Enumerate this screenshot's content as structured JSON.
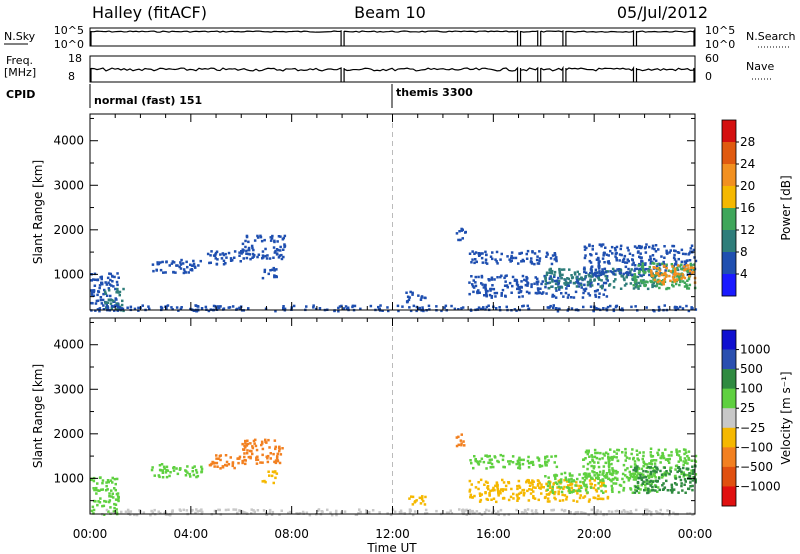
{
  "header": {
    "station": "Halley (fitACF)",
    "beam": "Beam 10",
    "date": "05/Jul/2012"
  },
  "top_strip": {
    "nsky_label": "N.Sky",
    "nsky_ticks": [
      "10^5",
      "10^0"
    ],
    "nsearch_label": "N.Search",
    "nsearch_ticks": [
      "10^5",
      "10^0"
    ],
    "freq_label": "Freq.",
    "freq_unit": "[MHz]",
    "freq_ticks": [
      "18",
      "8"
    ],
    "nave_label": "Nave",
    "nave_ticks": [
      "60",
      "0"
    ],
    "cpid_label": "CPID",
    "cpid_segments": [
      {
        "name": "normal (fast) 151",
        "start_hour": 0,
        "end_hour": 12
      },
      {
        "name": "themis 3300",
        "start_hour": 12,
        "end_hour": 24
      }
    ],
    "data_gaps_hours": [
      10.0,
      17.0,
      17.8,
      18.8,
      21.6
    ]
  },
  "chart_data": [
    {
      "type": "heatmap",
      "name": "power",
      "xlabel": "",
      "ylabel": "Slant Range [km]",
      "xlim": [
        0,
        24
      ],
      "ylim": [
        200,
        4600
      ],
      "yticks": [
        1000,
        2000,
        3000,
        4000
      ],
      "xtick_labels": [
        "00:00",
        "04:00",
        "08:00",
        "12:00",
        "16:00",
        "20:00",
        "00:00"
      ],
      "colorbar": {
        "label": "Power [dB]",
        "ticks": [
          "4",
          "8",
          "12",
          "16",
          "20",
          "24",
          "28"
        ],
        "colors": [
          "#1a1aff",
          "#1f4fb0",
          "#2e7d7a",
          "#3fa65a",
          "#f5b800",
          "#f29020",
          "#e05a10",
          "#d41010"
        ]
      },
      "dashed_line_hour": 12,
      "patches": [
        {
          "t0": 0.0,
          "t1": 1.1,
          "r0": 200,
          "r1": 1050,
          "color": "#1f4fb0"
        },
        {
          "t0": 0.5,
          "t1": 1.3,
          "r0": 200,
          "r1": 700,
          "color": "#2e7d7a"
        },
        {
          "t0": 2.4,
          "t1": 4.4,
          "r0": 1050,
          "r1": 1350,
          "color": "#1f4fb0"
        },
        {
          "t0": 4.6,
          "t1": 6.0,
          "r0": 1250,
          "r1": 1550,
          "color": "#1f4fb0"
        },
        {
          "t0": 6.0,
          "t1": 7.7,
          "r0": 1350,
          "r1": 1900,
          "color": "#1f4fb0"
        },
        {
          "t0": 6.8,
          "t1": 7.4,
          "r0": 900,
          "r1": 1200,
          "color": "#1f4fb0"
        },
        {
          "t0": 14.5,
          "t1": 14.9,
          "r0": 1750,
          "r1": 2050,
          "color": "#1f4fb0"
        },
        {
          "t0": 15.0,
          "t1": 18.5,
          "r0": 1250,
          "r1": 1550,
          "color": "#1f4fb0"
        },
        {
          "t0": 15.0,
          "t1": 20.5,
          "r0": 500,
          "r1": 1000,
          "color": "#1f4fb0"
        },
        {
          "t0": 18.0,
          "t1": 22.5,
          "r0": 700,
          "r1": 1150,
          "color": "#2e7d7a"
        },
        {
          "t0": 19.5,
          "t1": 24.0,
          "r0": 1000,
          "r1": 1700,
          "color": "#1f4fb0"
        },
        {
          "t0": 21.5,
          "t1": 24.0,
          "r0": 700,
          "r1": 1300,
          "color": "#3fa65a"
        },
        {
          "t0": 22.2,
          "t1": 24.0,
          "r0": 800,
          "r1": 1250,
          "color": "#f29020"
        },
        {
          "t0": 12.5,
          "t1": 13.3,
          "r0": 400,
          "r1": 650,
          "color": "#1f4fb0"
        },
        {
          "t0": 0.0,
          "t1": 24.0,
          "r0": 200,
          "r1": 330,
          "color": "#1f4fb0"
        }
      ]
    },
    {
      "type": "heatmap",
      "name": "velocity",
      "xlabel": "Time UT",
      "ylabel": "Slant Range [km]",
      "xlim": [
        0,
        24
      ],
      "ylim": [
        200,
        4600
      ],
      "yticks": [
        1000,
        2000,
        3000,
        4000
      ],
      "xtick_labels": [
        "00:00",
        "04:00",
        "08:00",
        "12:00",
        "16:00",
        "20:00",
        "00:00"
      ],
      "colorbar": {
        "label": "Velocity [m s⁻¹]",
        "ticks": [
          "1000",
          "500",
          "100",
          "25",
          "−25",
          "−100",
          "−500",
          "−1000"
        ],
        "colors": [
          "#1010d0",
          "#2a4fb0",
          "#2f8a40",
          "#5fd040",
          "#c8c8c8",
          "#f5b800",
          "#f28020",
          "#e05010",
          "#e01010"
        ]
      },
      "dashed_line_hour": 12,
      "patches": [
        {
          "t0": 0.0,
          "t1": 1.1,
          "r0": 200,
          "r1": 1050,
          "color": "#5fd040"
        },
        {
          "t0": 2.4,
          "t1": 4.4,
          "r0": 1050,
          "r1": 1350,
          "color": "#5fd040"
        },
        {
          "t0": 4.6,
          "t1": 6.0,
          "r0": 1250,
          "r1": 1550,
          "color": "#f28020"
        },
        {
          "t0": 6.0,
          "t1": 7.7,
          "r0": 1350,
          "r1": 1900,
          "color": "#f28020"
        },
        {
          "t0": 6.8,
          "t1": 7.4,
          "r0": 900,
          "r1": 1200,
          "color": "#f5b800"
        },
        {
          "t0": 14.5,
          "t1": 14.9,
          "r0": 1750,
          "r1": 2050,
          "color": "#f28020"
        },
        {
          "t0": 15.0,
          "t1": 18.5,
          "r0": 1250,
          "r1": 1550,
          "color": "#5fd040"
        },
        {
          "t0": 15.0,
          "t1": 20.5,
          "r0": 500,
          "r1": 1000,
          "color": "#f5b800"
        },
        {
          "t0": 18.0,
          "t1": 22.5,
          "r0": 700,
          "r1": 1150,
          "color": "#5fd040"
        },
        {
          "t0": 19.5,
          "t1": 24.0,
          "r0": 1000,
          "r1": 1700,
          "color": "#5fd040"
        },
        {
          "t0": 21.5,
          "t1": 24.0,
          "r0": 700,
          "r1": 1300,
          "color": "#2f8a40"
        },
        {
          "t0": 12.5,
          "t1": 13.3,
          "r0": 400,
          "r1": 650,
          "color": "#f5b800"
        },
        {
          "t0": 0.0,
          "t1": 24.0,
          "r0": 200,
          "r1": 330,
          "color": "#c8c8c8"
        }
      ]
    }
  ]
}
